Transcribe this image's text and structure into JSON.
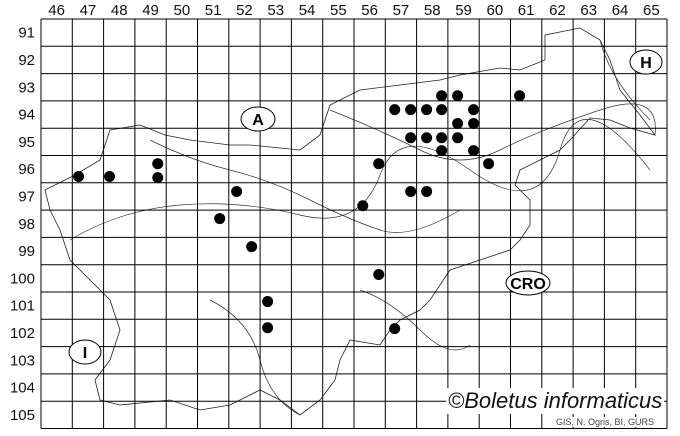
{
  "map": {
    "columns": [
      46,
      47,
      48,
      49,
      50,
      51,
      52,
      53,
      54,
      55,
      56,
      57,
      58,
      59,
      60,
      61,
      62,
      63,
      64,
      65
    ],
    "rows": [
      91,
      92,
      93,
      94,
      95,
      96,
      97,
      98,
      99,
      100,
      101,
      102,
      103,
      104,
      105
    ],
    "region_labels": [
      "A",
      "H",
      "CRO",
      "I"
    ],
    "dot_color": "#000000",
    "records": [
      [
        46.7,
        96.27
      ],
      [
        47.69,
        96.27
      ],
      [
        49.23,
        95.8
      ],
      [
        49.23,
        96.31
      ],
      [
        51.75,
        96.82
      ],
      [
        51.21,
        97.81
      ],
      [
        52.23,
        98.84
      ],
      [
        52.74,
        100.85
      ],
      [
        52.74,
        101.81
      ],
      [
        56.29,
        95.8
      ],
      [
        55.78,
        97.34
      ],
      [
        56.29,
        99.86
      ],
      [
        56.8,
        101.84
      ],
      [
        58.3,
        93.31
      ],
      [
        58.81,
        93.31
      ],
      [
        60.79,
        93.31
      ],
      [
        56.8,
        93.82
      ],
      [
        57.31,
        93.82
      ],
      [
        57.82,
        93.82
      ],
      [
        58.3,
        93.82
      ],
      [
        59.32,
        93.82
      ],
      [
        58.81,
        94.33
      ],
      [
        59.32,
        94.33
      ],
      [
        57.31,
        94.85
      ],
      [
        57.82,
        94.85
      ],
      [
        58.3,
        94.85
      ],
      [
        58.81,
        94.85
      ],
      [
        58.3,
        95.32
      ],
      [
        59.32,
        95.32
      ],
      [
        59.8,
        95.8
      ],
      [
        57.31,
        96.82
      ],
      [
        57.82,
        96.82
      ]
    ]
  },
  "watermark": "©Boletus informaticus",
  "credit": "GIS, N. Ogris, BI, GURS"
}
